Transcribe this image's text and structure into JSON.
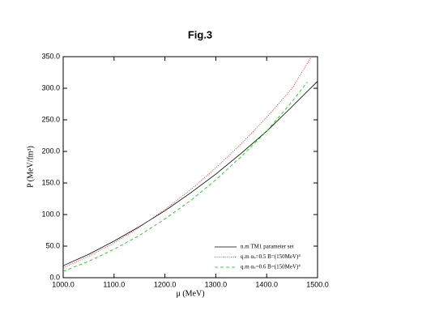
{
  "chart_data": {
    "type": "line",
    "title": "Fig.3",
    "xlabel": "μ (MeV)",
    "ylabel": "P (MeV/fm³)",
    "xlim": [
      1000,
      1500
    ],
    "ylim": [
      0,
      350
    ],
    "xticks": [
      {
        "value": 1000,
        "label": "1000.0"
      },
      {
        "value": 1100,
        "label": "1100.0"
      },
      {
        "value": 1200,
        "label": "1200.0"
      },
      {
        "value": 1300,
        "label": "1300.0"
      },
      {
        "value": 1400,
        "label": "1400.0"
      },
      {
        "value": 1500,
        "label": "1500.0"
      }
    ],
    "yticks": [
      {
        "value": 0,
        "label": "0.0"
      },
      {
        "value": 50,
        "label": "50.0"
      },
      {
        "value": 100,
        "label": "100.0"
      },
      {
        "value": 150,
        "label": "150.0"
      },
      {
        "value": 200,
        "label": "200.0"
      },
      {
        "value": 250,
        "label": "250.0"
      },
      {
        "value": 300,
        "label": "300.0"
      },
      {
        "value": 350,
        "label": "350.0"
      }
    ],
    "legend": "lower right",
    "series": [
      {
        "name": "n.m TM1 parameter set",
        "color": "#000000",
        "dash": "none",
        "x": [
          1000,
          1050,
          1100,
          1150,
          1200,
          1250,
          1300,
          1350,
          1400,
          1450,
          1500
        ],
        "values": [
          19,
          37,
          58,
          81,
          106,
          134,
          164,
          197,
          232,
          271,
          311
        ]
      },
      {
        "name": "q.m αₛ=0.5 B=(150MeV)⁴",
        "color": "#ff0000",
        "dash": "1,1.5",
        "x": [
          1000,
          1050,
          1100,
          1150,
          1200,
          1250,
          1300,
          1350,
          1400,
          1450,
          1488
        ],
        "values": [
          16,
          34,
          55,
          80,
          108,
          139,
          174,
          212,
          254,
          300,
          350
        ]
      },
      {
        "name": "q.m αₛ=0.6 B=(150MeV)⁴",
        "color": "#00cc00",
        "dash": "4,3",
        "x": [
          1000,
          1050,
          1100,
          1150,
          1200,
          1250,
          1300,
          1350,
          1400,
          1450,
          1480
        ],
        "values": [
          10,
          26,
          45,
          67,
          93,
          122,
          155,
          192,
          232,
          279,
          310
        ]
      }
    ]
  }
}
